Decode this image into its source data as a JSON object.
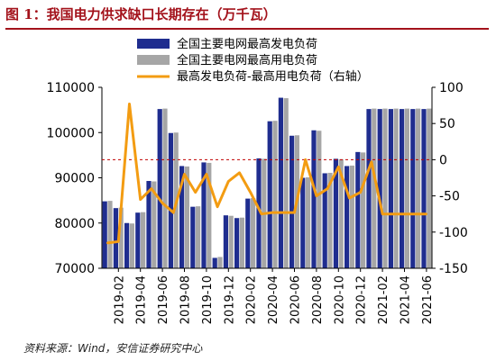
{
  "title": "图 1：我国电力供求缺口长期存在（万千瓦）",
  "source": "资料来源：Wind，安信证券研究中心",
  "colors": {
    "series1": "#1f2d8f",
    "series2": "#a6a6a6",
    "series3": "#f39c12",
    "title": "#a3121b",
    "zero_line": "#c00000"
  },
  "chart_data": {
    "type": "bar+line",
    "x": [
      "2019-01",
      "2019-02",
      "2019-03",
      "2019-04",
      "2019-05",
      "2019-06",
      "2019-07",
      "2019-08",
      "2019-09",
      "2019-10",
      "2019-11",
      "2019-12",
      "2020-01",
      "2020-02",
      "2020-03",
      "2020-04",
      "2020-05",
      "2020-06",
      "2020-07",
      "2020-08",
      "2020-09",
      "2020-10",
      "2020-11",
      "2020-12",
      "2021-01",
      "2021-02",
      "2021-03",
      "2021-04",
      "2021-05",
      "2021-06"
    ],
    "x_tick_labels": [
      "2019-02",
      "2019-04",
      "2019-06",
      "2019-08",
      "2019-10",
      "2019-12",
      "2020-02",
      "2020-04",
      "2020-06",
      "2020-08",
      "2020-10",
      "2020-12",
      "2021-02",
      "2021-04",
      "2021-06"
    ],
    "y_left": {
      "ticks": [
        70000,
        80000,
        90000,
        100000,
        110000
      ],
      "lim": [
        70000,
        110000
      ]
    },
    "y_right": {
      "ticks": [
        100,
        50,
        0,
        -50,
        -100,
        -150
      ],
      "lim": [
        -150,
        100
      ]
    },
    "series": [
      {
        "name": "全国主要电网最高发电负荷",
        "type": "bar",
        "axis": "left",
        "values": [
          84800,
          83300,
          80000,
          82300,
          89300,
          105200,
          99900,
          92600,
          83600,
          93400,
          72300,
          81700,
          81100,
          85400,
          94300,
          102500,
          107700,
          99300,
          90000,
          100500,
          91000,
          94200,
          92600,
          95700,
          105200,
          105200,
          105200,
          105200,
          105200,
          105200
        ]
      },
      {
        "name": "全国主要电网最高用电负荷",
        "type": "bar",
        "axis": "left",
        "values": [
          84900,
          83400,
          79900,
          82400,
          89200,
          105300,
          100000,
          92500,
          83700,
          93300,
          72500,
          81600,
          81200,
          85500,
          94200,
          102600,
          107600,
          99400,
          90100,
          100400,
          91100,
          94100,
          92700,
          95600,
          105300,
          105300,
          105300,
          105300,
          105300,
          105300
        ]
      },
      {
        "name": "最高发电负荷-最高用电负荷（右轴）",
        "type": "line",
        "axis": "right",
        "values": [
          -115,
          -113,
          77,
          -55,
          -40,
          -60,
          -73,
          -20,
          -45,
          -20,
          -65,
          -30,
          -18,
          -45,
          -75,
          -73,
          -73,
          -73,
          0,
          -50,
          -40,
          -10,
          -53,
          -45,
          -3,
          -75,
          -75,
          -75,
          -75,
          -75
        ]
      }
    ],
    "legend_position": "top-right",
    "reference_line": {
      "axis": "right",
      "value": 0,
      "style": "dashed"
    }
  }
}
